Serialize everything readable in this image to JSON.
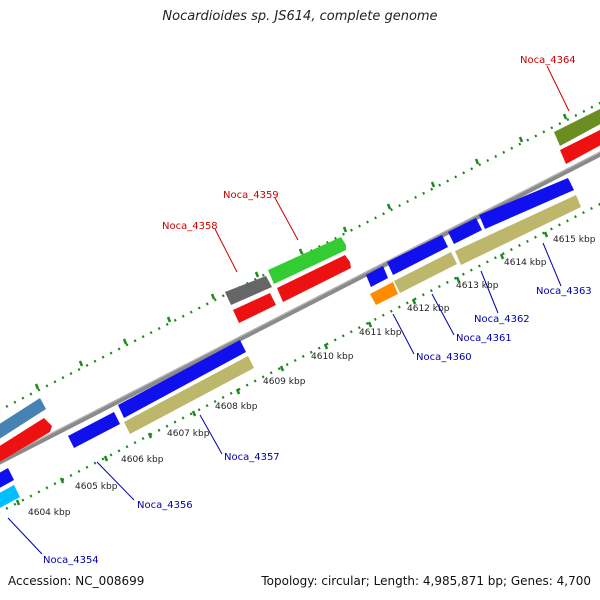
{
  "header": {
    "title": "Nocardioides sp. JS614, complete genome"
  },
  "footer": {
    "accession": "Accession: NC_008699",
    "summary": "Topology: circular; Length: 4,985,871 bp; Genes: 4,700"
  },
  "colors": {
    "backbone": "#7d7d7d",
    "dots": "#1e8a1e",
    "label_forward": "#cc0000",
    "label_reverse": "#0000aa"
  },
  "ticks": [
    "4604 kbp",
    "4605 kbp",
    "4606 kbp",
    "4607 kbp",
    "4608 kbp",
    "4609 kbp",
    "4610 kbp",
    "4611 kbp",
    "4612 kbp",
    "4613 kbp",
    "4614 kbp",
    "4615 kbp"
  ],
  "gene_labels": {
    "forward": [
      "Noca_4358",
      "Noca_4359",
      "Noca_4364"
    ],
    "reverse": [
      "Noca_4354",
      "Noca_4356",
      "Noca_4357",
      "Noca_4360",
      "Noca_4361",
      "Noca_4362",
      "Noca_4363"
    ]
  }
}
